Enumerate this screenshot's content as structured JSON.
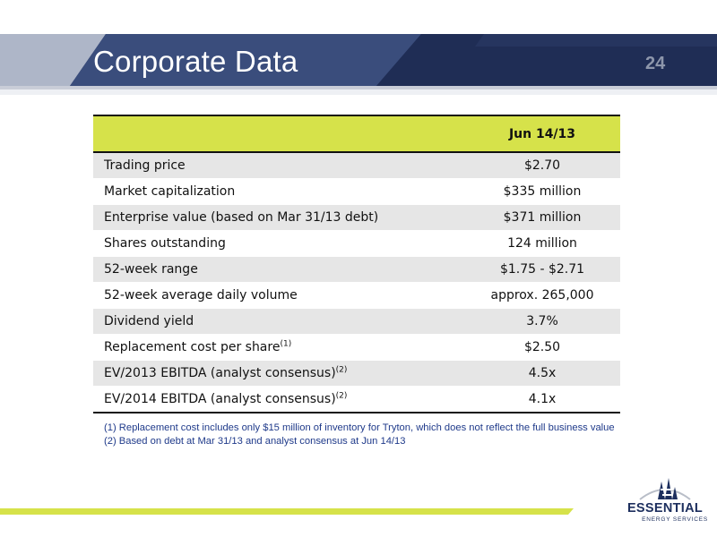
{
  "header": {
    "title": "Corporate Data",
    "page_number": "24"
  },
  "table": {
    "date_header": "Jun 14/13",
    "rows": [
      {
        "metric": "Trading price",
        "note": "",
        "value": "$2.70"
      },
      {
        "metric": "Market capitalization",
        "note": "",
        "value": "$335 million"
      },
      {
        "metric": "Enterprise value (based on Mar 31/13 debt)",
        "note": "",
        "value": "$371 million"
      },
      {
        "metric": "Shares outstanding",
        "note": "",
        "value": "124 million"
      },
      {
        "metric": "52-week range",
        "note": "",
        "value": "$1.75 - $2.71"
      },
      {
        "metric": "52-week average daily volume",
        "note": "",
        "value": "approx. 265,000"
      },
      {
        "metric": "Dividend yield",
        "note": "",
        "value": "3.7%"
      },
      {
        "metric": "Replacement cost per share",
        "note": "(1)",
        "value": "$2.50"
      },
      {
        "metric": "EV/2013 EBITDA (analyst consensus)",
        "note": "(2)",
        "value": "4.5x"
      },
      {
        "metric": "EV/2014 EBITDA (analyst consensus)",
        "note": "(2)",
        "value": "4.1x"
      }
    ]
  },
  "footnotes": [
    "(1)  Replacement cost includes only $15 million of inventory for Tryton, which does not reflect the full business value",
    "(2)  Based on debt at Mar 31/13 and analyst consensus at Jun 14/13"
  ],
  "logo": {
    "name": "ESSENTIAL",
    "subtitle": "ENERGY SERVICES"
  },
  "colors": {
    "header_navy": "#1f2d55",
    "header_accent": "#3a4d7c",
    "table_header": "#d6e24a",
    "shaded_row": "#e6e6e6",
    "footnote_text": "#1f3a8a",
    "stripe": "#d6e24a"
  }
}
